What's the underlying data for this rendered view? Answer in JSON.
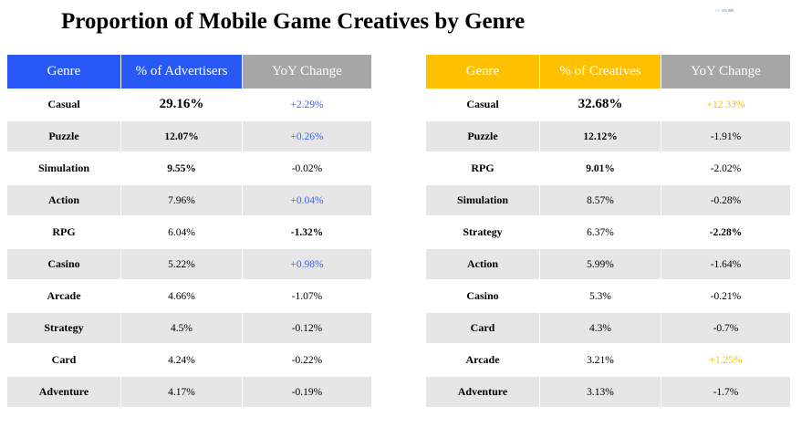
{
  "title": "Proportion of Mobile Game Creatives by Genre",
  "colors": {
    "left_header_accent": "#2858f5",
    "right_header_accent": "#fec000",
    "header_neutral": "#a6a6a6",
    "row_alt": "#e6e6e6",
    "positive_left": "#3d63f0",
    "positive_right": "#f7c000"
  },
  "left_table": {
    "headers": [
      "Genre",
      "% of Advertisers",
      "YoY Change"
    ],
    "rows": [
      {
        "genre": "Casual",
        "share": "29.16%",
        "change": "+2.29%"
      },
      {
        "genre": "Puzzle",
        "share": "12.07%",
        "change": "+0.26%"
      },
      {
        "genre": "Simulation",
        "share": "9.55%",
        "change": "-0.02%"
      },
      {
        "genre": "Action",
        "share": "7.96%",
        "change": "+0.04%"
      },
      {
        "genre": "RPG",
        "share": "6.04%",
        "change": "-1.32%"
      },
      {
        "genre": "Casino",
        "share": "5.22%",
        "change": "+0.98%"
      },
      {
        "genre": "Arcade",
        "share": "4.66%",
        "change": "-1.07%"
      },
      {
        "genre": "Strategy",
        "share": "4.5%",
        "change": "-0.12%"
      },
      {
        "genre": "Card",
        "share": "4.24%",
        "change": "-0.22%"
      },
      {
        "genre": "Adventure",
        "share": "4.17%",
        "change": "-0.19%"
      }
    ]
  },
  "right_table": {
    "headers": [
      "Genre",
      "% of Creatives",
      "YoY Change"
    ],
    "rows": [
      {
        "genre": "Casual",
        "share": "32.68%",
        "change": "+12.33%"
      },
      {
        "genre": "Puzzle",
        "share": "12.12%",
        "change": "-1.91%"
      },
      {
        "genre": "RPG",
        "share": "9.01%",
        "change": "-2.02%"
      },
      {
        "genre": "Simulation",
        "share": "8.57%",
        "change": "-0.28%"
      },
      {
        "genre": "Strategy",
        "share": "6.37%",
        "change": "-2.28%"
      },
      {
        "genre": "Action",
        "share": "5.99%",
        "change": "-1.64%"
      },
      {
        "genre": "Casino",
        "share": "5.3%",
        "change": "-0.21%"
      },
      {
        "genre": "Card",
        "share": "4.3%",
        "change": "-0.7%"
      },
      {
        "genre": "Arcade",
        "share": "3.21%",
        "change": "+1.25%"
      },
      {
        "genre": "Adventure",
        "share": "3.13%",
        "change": "-1.7%"
      }
    ]
  }
}
